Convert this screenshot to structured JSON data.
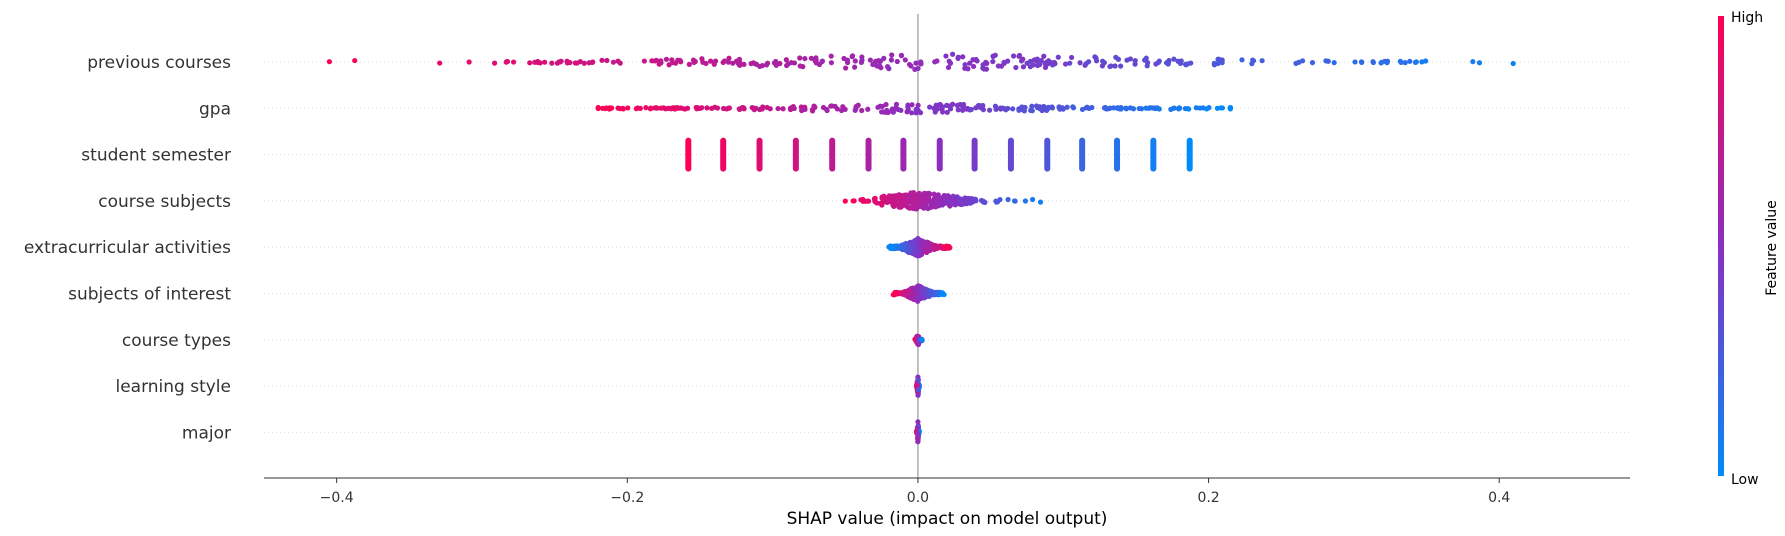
{
  "chart_data": {
    "type": "scatter",
    "subtype": "shap-beeswarm",
    "xlabel": "SHAP value (impact on model output)",
    "xlim": [
      -0.45,
      0.49
    ],
    "xticks": [
      -0.4,
      -0.2,
      0.0,
      0.2,
      0.4
    ],
    "xtick_labels": [
      "−0.4",
      "−0.2",
      "0.0",
      "0.2",
      "0.4"
    ],
    "zero_line": true,
    "row_guides": "dotted",
    "features": [
      {
        "name": "previous courses",
        "min": -0.405,
        "max": 0.45,
        "core": [
          -0.3,
          0.35
        ],
        "center": 0.02,
        "spread": 0.13,
        "height": 16,
        "density": 1.0
      },
      {
        "name": "gpa",
        "min": -0.22,
        "max": 0.215,
        "core": [
          -0.22,
          0.215
        ],
        "center": 0.0,
        "spread": 0.12,
        "height": 10,
        "density": 1.0
      },
      {
        "name": "student semester",
        "discrete": [
          -0.158,
          -0.134,
          -0.109,
          -0.084,
          -0.059,
          -0.034,
          -0.01,
          0.015,
          0.039,
          0.064,
          0.089,
          0.113,
          0.137,
          0.162,
          0.187
        ]
      },
      {
        "name": "course subjects",
        "min": -0.05,
        "max": 0.093,
        "core": [
          -0.03,
          0.04
        ],
        "center": 0.0,
        "spread": 0.012,
        "height": 18,
        "density": 1.0
      },
      {
        "name": "extracurricular activities",
        "min": -0.02,
        "max": 0.022,
        "core": [
          -0.02,
          0.022
        ],
        "center": 0.0,
        "spread": 0.008,
        "height": 18,
        "density": 1.0
      },
      {
        "name": "subjects of interest",
        "min": -0.017,
        "max": 0.018,
        "core": [
          -0.017,
          0.018
        ],
        "center": 0.0,
        "spread": 0.005,
        "height": 16,
        "density": 0.8
      },
      {
        "name": "course types",
        "min": -0.002,
        "max": 0.003,
        "core": [
          -0.002,
          0.003
        ],
        "center": 0.0,
        "spread": 0.001,
        "height": 12,
        "density": 0.25
      },
      {
        "name": "learning style",
        "min": -0.001,
        "max": 0.001,
        "core": [
          -0.001,
          0.001
        ],
        "center": 0.0,
        "spread": 0.0005,
        "height": 22,
        "density": 0.2
      },
      {
        "name": "major",
        "min": -0.001,
        "max": 0.001,
        "core": [
          -0.001,
          0.001
        ],
        "center": 0.0,
        "spread": 0.0005,
        "height": 22,
        "density": 0.2
      }
    ],
    "colorbar": {
      "label": "Feature value",
      "high_label": "High",
      "low_label": "Low",
      "high_color": "#ff0052",
      "mid_color": "#8a2fc0",
      "low_color": "#008bfb"
    }
  }
}
